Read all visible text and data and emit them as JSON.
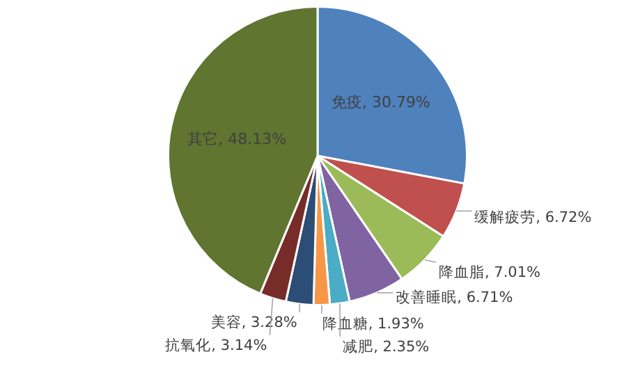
{
  "chart_data": {
    "type": "pie",
    "categories": [
      "免疫",
      "缓解疲劳",
      "降血脂",
      "改善睡眠",
      "减肥",
      "降血糖",
      "美容",
      "抗氧化",
      "其它"
    ],
    "values": [
      30.79,
      6.72,
      7.01,
      6.71,
      2.35,
      1.93,
      3.28,
      3.14,
      48.13
    ],
    "value_labels": [
      "30.79%",
      "6.72%",
      "7.01%",
      "6.71%",
      "2.35%",
      "1.93%",
      "3.28%",
      "3.14%",
      "48.13%"
    ],
    "colors": [
      "#4f81bd",
      "#c0504d",
      "#9bbb59",
      "#8064a2",
      "#4bacc6",
      "#f79646",
      "#2c4d75",
      "#772c2a",
      "#5f7530"
    ]
  }
}
